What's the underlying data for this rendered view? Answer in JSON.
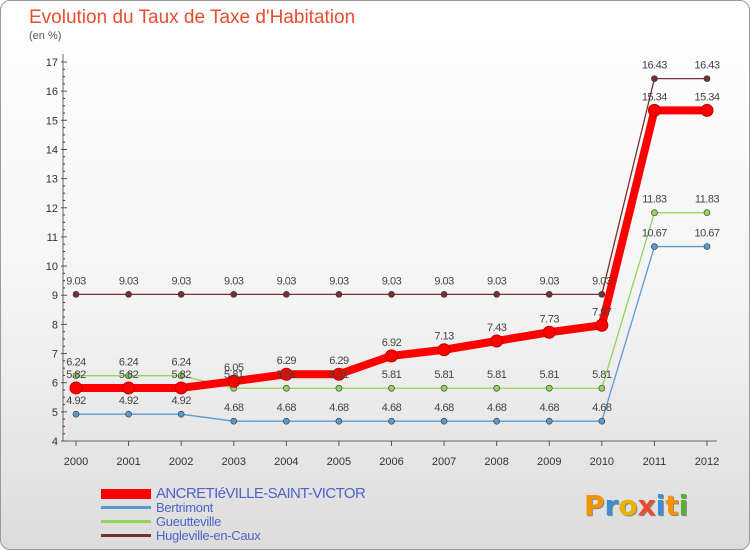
{
  "title": "Evolution du Taux de Taxe d'Habitation",
  "subtitle": "(en %)",
  "brand": {
    "letters": [
      "P",
      "r",
      "o",
      "x",
      "i",
      "t",
      "i"
    ],
    "colors": [
      "#f29400",
      "#3a8fd8",
      "#e8b400",
      "#e84e2e",
      "#3a8fd8",
      "#f29400",
      "#58b030"
    ]
  },
  "chart_data": {
    "type": "line",
    "title": "Evolution du Taux de Taxe d'Habitation",
    "ylabel": "(en %)",
    "xlabel": "",
    "ylim": [
      4,
      17
    ],
    "yticks": [
      4,
      5,
      6,
      7,
      8,
      9,
      10,
      11,
      12,
      13,
      14,
      15,
      16,
      17
    ],
    "x": [
      "2000",
      "2001",
      "2002",
      "2003",
      "2004",
      "2005",
      "2006",
      "2007",
      "2008",
      "2009",
      "2010",
      "2011",
      "2012"
    ],
    "series": [
      {
        "name": "Hugleville-en-Caux",
        "color": "#7a2f2f",
        "values": [
          9.03,
          9.03,
          9.03,
          9.03,
          9.03,
          9.03,
          9.03,
          9.03,
          9.03,
          9.03,
          9.03,
          16.43,
          16.43
        ],
        "labels": [
          "9.03",
          "9.03",
          "9.03",
          "9.03",
          "9.03",
          "9.03",
          "9.03",
          "9.03",
          "9.03",
          "9.03",
          "9.03",
          "16.43",
          "16.43"
        ]
      },
      {
        "name": "Gueutteville",
        "color": "#8fd65a",
        "values": [
          6.24,
          6.24,
          6.24,
          5.81,
          5.81,
          5.81,
          5.81,
          5.81,
          5.81,
          5.81,
          5.81,
          11.83,
          11.83
        ],
        "labels": [
          "6.24",
          "6.24",
          "6.24",
          "5.81",
          "5.81",
          "5.81",
          "5.81",
          "5.81",
          "5.81",
          "5.81",
          "5.81",
          "11.83",
          "11.83"
        ]
      },
      {
        "name": "Bertrimont",
        "color": "#5b9ad0",
        "values": [
          4.92,
          4.92,
          4.92,
          4.68,
          4.68,
          4.68,
          4.68,
          4.68,
          4.68,
          4.68,
          4.68,
          10.67,
          10.67
        ],
        "labels": [
          "4.92",
          "4.92",
          "4.92",
          "4.68",
          "4.68",
          "4.68",
          "4.68",
          "4.68",
          "4.68",
          "4.68",
          "4.68",
          "10.67",
          "10.67"
        ]
      },
      {
        "name": "ANCRETIéVILLE-SAINT-VICTOR",
        "color": "#ff0000",
        "values": [
          5.82,
          5.82,
          5.82,
          6.05,
          6.29,
          6.29,
          6.92,
          7.13,
          7.43,
          7.73,
          7.97,
          15.34,
          15.34
        ],
        "labels": [
          "5.82",
          "5.82",
          "5.82",
          "6.05",
          "6.29",
          "6.29",
          "6.92",
          "7.13",
          "7.43",
          "7.73",
          "7.97",
          "15.34",
          "15.34"
        ]
      }
    ],
    "legend": [
      {
        "name": "ANCRETIéVILLE-SAINT-VICTOR",
        "color": "#ff0000"
      },
      {
        "name": "Bertrimont",
        "color": "#5b9ad0"
      },
      {
        "name": "Gueutteville",
        "color": "#8fd65a"
      },
      {
        "name": "Hugleville-en-Caux",
        "color": "#7a2f2f"
      }
    ],
    "legend_position": "bottom-left",
    "grid": false
  }
}
